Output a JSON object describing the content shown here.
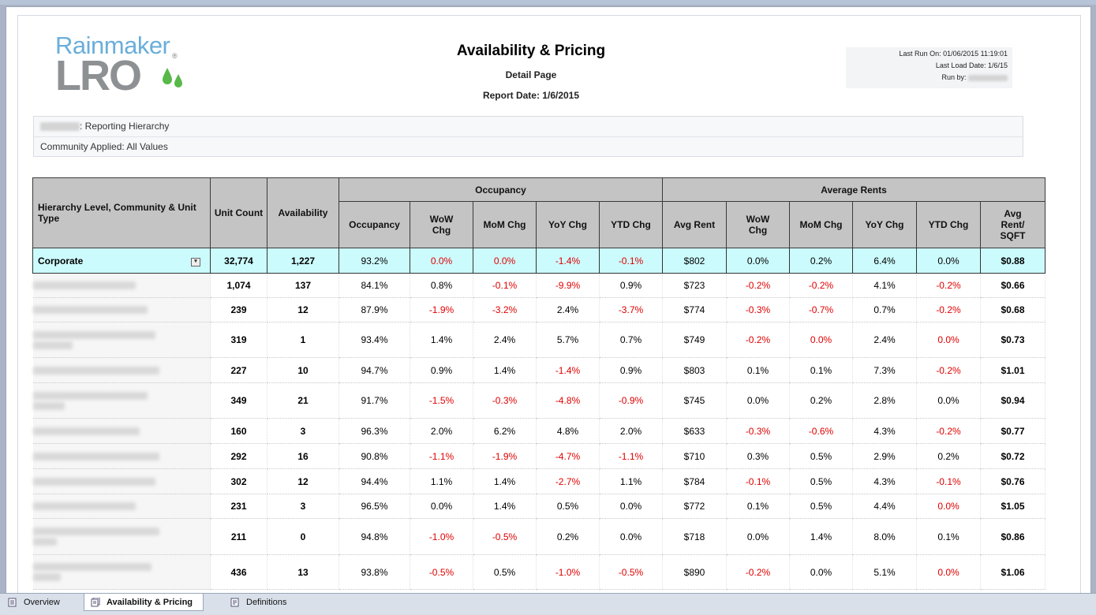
{
  "header": {
    "logo_top": "Rainmaker",
    "logo_bottom": "LRO",
    "logo_mark": "®",
    "title": "Availability & Pricing",
    "subtitle": "Detail Page",
    "report_date": "Report Date: 1/6/2015",
    "last_run": "Last Run On: 01/06/2015 11:19:01",
    "last_load": "Last Load Date: 1/6/15",
    "run_by_label": "Run by:"
  },
  "filters": {
    "hierarchy_suffix": ": Reporting Hierarchy",
    "community": "Community Applied: All Values"
  },
  "table": {
    "col_name": "Hierarchy Level, Community & Unit Type",
    "col_unit_count": "Unit Count",
    "col_availability": "Availability",
    "group_occupancy": "Occupancy",
    "group_rents": "Average Rents",
    "occ_cols": [
      "Occupancy",
      "WoW Chg",
      "MoM Chg",
      "YoY Chg",
      "YTD Chg"
    ],
    "rent_cols": [
      "Avg Rent",
      "WoW Chg",
      "MoM Chg",
      "YoY Chg",
      "YTD Chg",
      "Avg Rent/ SQFT"
    ],
    "corporate": {
      "name": "Corporate",
      "values": [
        "32,774",
        "1,227",
        "93.2%",
        "0.0%",
        "0.0%",
        "-1.4%",
        "-0.1%",
        "$802",
        "0.0%",
        "0.2%",
        "6.4%",
        "0.0%",
        "$0.88"
      ]
    },
    "rows": [
      [
        "1,074",
        "137",
        "84.1%",
        "0.8%",
        "-0.1%",
        "-9.9%",
        "0.9%",
        "$723",
        "-0.2%",
        "-0.2%",
        "4.1%",
        "-0.2%",
        "$0.66"
      ],
      [
        "239",
        "12",
        "87.9%",
        "-1.9%",
        "-3.2%",
        "2.4%",
        "-3.7%",
        "$774",
        "-0.3%",
        "-0.7%",
        "0.7%",
        "-0.2%",
        "$0.68"
      ],
      [
        "319",
        "1",
        "93.4%",
        "1.4%",
        "2.4%",
        "5.7%",
        "0.7%",
        "$749",
        "-0.2%",
        "0.0%",
        "2.4%",
        "0.0%",
        "$0.73"
      ],
      [
        "227",
        "10",
        "94.7%",
        "0.9%",
        "1.4%",
        "-1.4%",
        "0.9%",
        "$803",
        "0.1%",
        "0.1%",
        "7.3%",
        "-0.2%",
        "$1.01"
      ],
      [
        "349",
        "21",
        "91.7%",
        "-1.5%",
        "-0.3%",
        "-4.8%",
        "-0.9%",
        "$745",
        "0.0%",
        "0.2%",
        "2.8%",
        "0.0%",
        "$0.94"
      ],
      [
        "160",
        "3",
        "96.3%",
        "2.0%",
        "6.2%",
        "4.8%",
        "2.0%",
        "$633",
        "-0.3%",
        "-0.6%",
        "4.3%",
        "-0.2%",
        "$0.77"
      ],
      [
        "292",
        "16",
        "90.8%",
        "-1.1%",
        "-1.9%",
        "-4.7%",
        "-1.1%",
        "$710",
        "0.3%",
        "0.5%",
        "2.9%",
        "0.2%",
        "$0.72"
      ],
      [
        "302",
        "12",
        "94.4%",
        "1.1%",
        "1.4%",
        "-2.7%",
        "1.1%",
        "$784",
        "-0.1%",
        "0.5%",
        "4.3%",
        "-0.1%",
        "$0.76"
      ],
      [
        "231",
        "3",
        "96.5%",
        "0.0%",
        "1.4%",
        "0.5%",
        "0.0%",
        "$772",
        "0.1%",
        "0.5%",
        "4.4%",
        "0.0%",
        "$1.05"
      ],
      [
        "211",
        "0",
        "94.8%",
        "-1.0%",
        "-0.5%",
        "0.2%",
        "0.0%",
        "$718",
        "0.0%",
        "1.4%",
        "8.0%",
        "0.1%",
        "$0.86"
      ],
      [
        "436",
        "13",
        "93.8%",
        "-0.5%",
        "0.5%",
        "-1.0%",
        "-0.5%",
        "$890",
        "-0.2%",
        "0.0%",
        "5.1%",
        "0.0%",
        "$1.06"
      ]
    ],
    "row_red": [
      [
        false,
        false,
        false,
        false,
        true,
        true,
        false,
        false,
        true,
        true,
        false,
        true,
        false
      ],
      [
        false,
        false,
        false,
        true,
        true,
        false,
        true,
        false,
        true,
        true,
        false,
        true,
        false
      ],
      [
        false,
        false,
        false,
        false,
        false,
        false,
        false,
        false,
        true,
        true,
        false,
        true,
        false
      ],
      [
        false,
        false,
        false,
        false,
        false,
        true,
        false,
        false,
        false,
        false,
        false,
        true,
        false
      ],
      [
        false,
        false,
        false,
        true,
        true,
        true,
        true,
        false,
        false,
        false,
        false,
        false,
        false
      ],
      [
        false,
        false,
        false,
        false,
        false,
        false,
        false,
        false,
        true,
        true,
        false,
        true,
        false
      ],
      [
        false,
        false,
        false,
        true,
        true,
        true,
        true,
        false,
        false,
        false,
        false,
        false,
        false
      ],
      [
        false,
        false,
        false,
        false,
        false,
        true,
        false,
        false,
        true,
        false,
        false,
        true,
        false
      ],
      [
        false,
        false,
        false,
        false,
        false,
        false,
        false,
        false,
        false,
        false,
        false,
        true,
        false
      ],
      [
        false,
        false,
        false,
        true,
        true,
        false,
        false,
        false,
        false,
        false,
        false,
        false,
        false
      ],
      [
        false,
        false,
        false,
        true,
        false,
        true,
        true,
        false,
        true,
        false,
        false,
        true,
        false
      ]
    ]
  },
  "tabs": [
    {
      "label": "Overview",
      "icon": "report-icon"
    },
    {
      "label": "Availability & Pricing",
      "icon": "report-stack-icon"
    },
    {
      "label": "Definitions",
      "icon": "document-icon"
    }
  ]
}
